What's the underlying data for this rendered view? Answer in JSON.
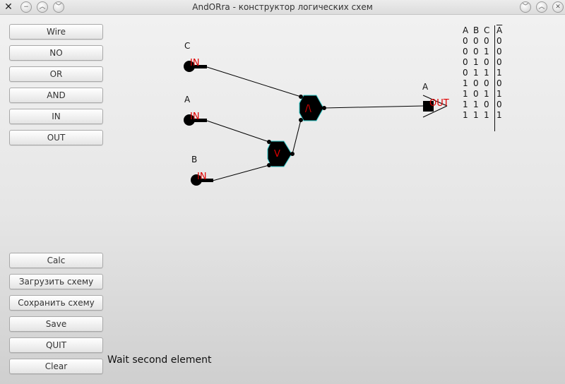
{
  "window": {
    "title": "AndORra - конструктор логических схем",
    "icon": "x-app-icon"
  },
  "buttons_top": [
    {
      "label": "Wire"
    },
    {
      "label": "NO"
    },
    {
      "label": "OR"
    },
    {
      "label": "AND"
    },
    {
      "label": "IN"
    },
    {
      "label": "OUT"
    }
  ],
  "buttons_bottom": [
    {
      "label": "Calc"
    },
    {
      "label": "Загрузить схему"
    },
    {
      "label": "Сохранить схему"
    },
    {
      "label": "Save"
    },
    {
      "label": "QUIT"
    },
    {
      "label": "Clear"
    }
  ],
  "status": "Wait second element",
  "circuit": {
    "inputs": [
      {
        "name": "C",
        "tag": "IN"
      },
      {
        "name": "A",
        "tag": "IN"
      },
      {
        "name": "B",
        "tag": "IN"
      }
    ],
    "gates": [
      {
        "type": "AND",
        "symbol": "/\\"
      },
      {
        "type": "OR",
        "symbol": "V"
      }
    ],
    "output": {
      "name": "A",
      "tag": "OUT"
    }
  },
  "truth_table": {
    "headers": [
      "A",
      "B",
      "C",
      "A"
    ],
    "rows": [
      [
        "0",
        "0",
        "0",
        "0"
      ],
      [
        "0",
        "0",
        "1",
        "0"
      ],
      [
        "0",
        "1",
        "0",
        "0"
      ],
      [
        "0",
        "1",
        "1",
        "1"
      ],
      [
        "1",
        "0",
        "0",
        "0"
      ],
      [
        "1",
        "0",
        "1",
        "1"
      ],
      [
        "1",
        "1",
        "0",
        "0"
      ],
      [
        "1",
        "1",
        "1",
        "1"
      ]
    ]
  },
  "colors": {
    "label_red": "#e00000",
    "gate_outline": "#33cccc"
  }
}
